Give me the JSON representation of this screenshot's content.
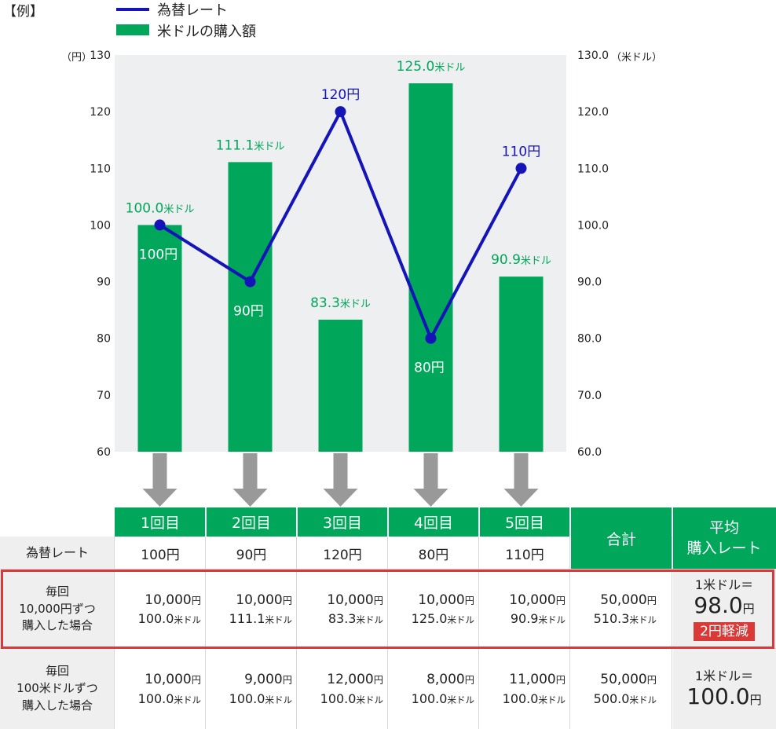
{
  "example_label": "【例】",
  "chart_data": {
    "type": "bar+line",
    "categories": [
      "1回目",
      "2回目",
      "3回目",
      "4回目",
      "5回目"
    ],
    "legend": [
      "為替レート",
      "米ドルの購入額"
    ],
    "series": [
      {
        "name": "米ドルの購入額",
        "type": "bar",
        "axis": "right",
        "color": "#00a65a",
        "values": [
          100.0,
          111.1,
          83.3,
          125.0,
          90.9
        ],
        "labels": [
          "100.0米ドル",
          "111.1米ドル",
          "83.3米ドル",
          "125.0米ドル",
          "90.9米ドル"
        ]
      },
      {
        "name": "為替レート",
        "type": "line",
        "axis": "left",
        "color": "#1414b8",
        "values": [
          100,
          90,
          120,
          80,
          110
        ],
        "labels": [
          "100円",
          "90円",
          "120円",
          "80円",
          "110円"
        ],
        "label_positions": [
          "below",
          "below",
          "above",
          "below",
          "above"
        ]
      }
    ],
    "y_left": {
      "unit_label": "（円）",
      "ylim": [
        60,
        130
      ],
      "ticks": [
        "60",
        "70",
        "80",
        "90",
        "100",
        "110",
        "120",
        "130"
      ]
    },
    "y_right": {
      "unit_label": "（米ドル）",
      "ylim": [
        60,
        130
      ],
      "ticks": [
        "60.0",
        "70.0",
        "80.0",
        "90.0",
        "100.0",
        "110.0",
        "120.0",
        "130.0"
      ]
    },
    "plot_background": "#eeeff1",
    "arrow_color": "#999999"
  },
  "table": {
    "header_total": "合計",
    "header_avg_line1": "平均",
    "header_avg_line2": "購入レート",
    "row_rate_label": "為替レート",
    "rates": [
      "100円",
      "90円",
      "120円",
      "80円",
      "110円"
    ],
    "row_a": {
      "label_line1": "毎回",
      "label_line2": "10,000円ずつ",
      "label_line3": "購入した場合",
      "yen": [
        "10,000",
        "10,000",
        "10,000",
        "10,000",
        "10,000"
      ],
      "usd": [
        "100.0",
        "111.1",
        "83.3",
        "125.0",
        "90.9"
      ],
      "total_yen": "50,000",
      "total_usd": "510.3",
      "avg_prefix": "1米ドル＝",
      "avg_value": "98.0",
      "badge": "2円軽減"
    },
    "row_b": {
      "label_line1": "毎回",
      "label_line2": "100米ドルずつ",
      "label_line3": "購入した場合",
      "yen": [
        "10,000",
        "9,000",
        "12,000",
        "8,000",
        "11,000"
      ],
      "usd": [
        "100.0",
        "100.0",
        "100.0",
        "100.0",
        "100.0"
      ],
      "total_yen": "50,000",
      "total_usd": "500.0",
      "avg_prefix": "1米ドル＝",
      "avg_value": "100.0"
    },
    "yen_unit": "円",
    "usd_unit": "米ドル",
    "header_green": "#00a65a",
    "highlight_red": "#d9393a"
  }
}
